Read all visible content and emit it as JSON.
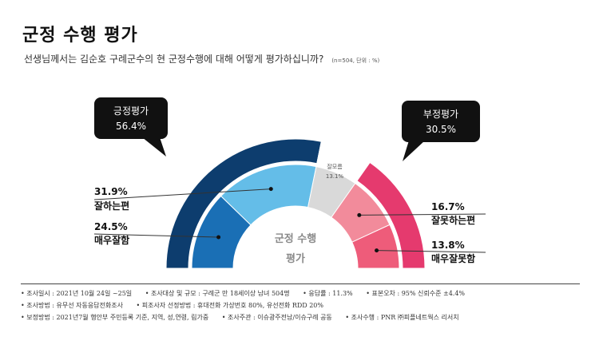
{
  "page": {
    "title": "군정 수행 평가",
    "question": "선생님께서는 김순호 구례군수의 현 군정수행에 대해 어떻게 평가하십니까?",
    "note": "(n=504, 단위 : %)"
  },
  "chart_data": {
    "type": "pie",
    "center_label_line1": "군정 수행",
    "center_label_line2": "평가",
    "groups": [
      {
        "name": "긍정평가",
        "value": 56.4,
        "value_label": "56.4%",
        "color": "#0d3d6e"
      },
      {
        "name": "부정평가",
        "value": 30.5,
        "value_label": "30.5%",
        "color": "#e53a6e"
      }
    ],
    "slices": [
      {
        "label": "매우잘함",
        "value": 24.5,
        "value_label": "24.5%",
        "color": "#1a6fb5"
      },
      {
        "label": "잘하는편",
        "value": 31.9,
        "value_label": "31.9%",
        "color": "#64bde8"
      },
      {
        "label": "잘모름",
        "value": 13.1,
        "value_label": "13.1%",
        "color": "#d9d9d9"
      },
      {
        "label": "잘못하는편",
        "value": 16.7,
        "value_label": "16.7%",
        "color": "#f28b9b"
      },
      {
        "label": "매우잘못함",
        "value": 13.8,
        "value_label": "13.8%",
        "color": "#ee5c7a"
      }
    ],
    "colors": {
      "outer_neutral": "#ffffff",
      "bubble": "#111111"
    }
  },
  "footer": {
    "row1": [
      "• 조사일시 : 2021년 10월 24일 ~25일",
      "• 조사대상 및 규모 : 구례군 만 18세이상 남녀 504명",
      "• 응답률 : 11.3%",
      "• 표본오차 : 95% 신뢰수준 ±4.4%"
    ],
    "row2": [
      "• 조사방법 : 유무선 자동응답전화조사",
      "• 피조사자 선정방법 : 휴대전화 가상번호 80%, 유선전화 RDD 20%"
    ],
    "row3": [
      "• 보정방법 : 2021년7월 행안부 주민등록 기준, 지역, 성,연령, 림가중",
      "• 조사주관 : 이슈광주전남/이슈구례 공동",
      "• 조사수행 : PNR ㈜피플네트웍스 리서치"
    ]
  }
}
